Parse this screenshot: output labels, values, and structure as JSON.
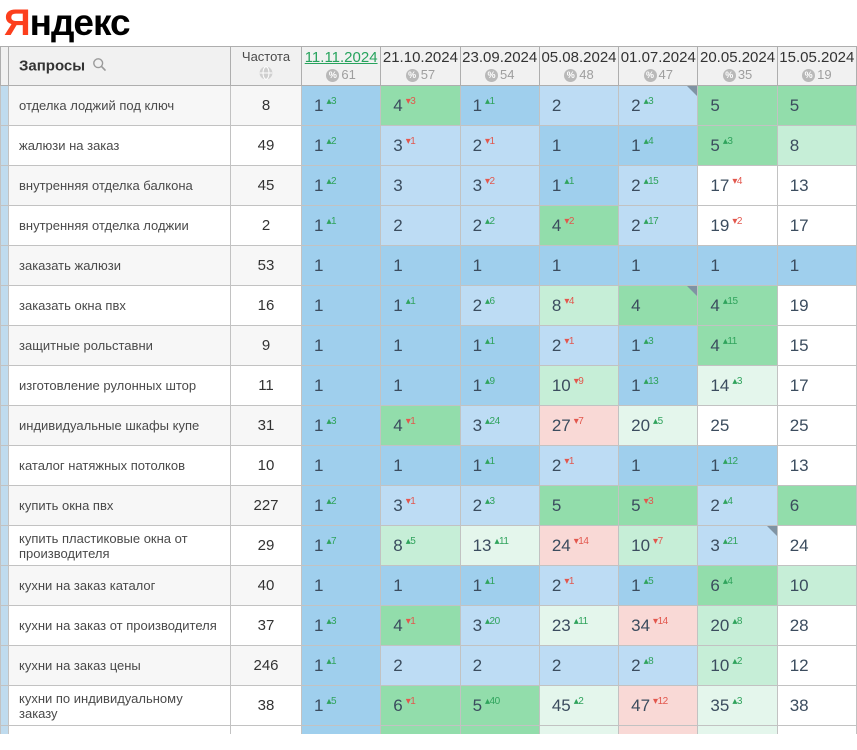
{
  "logo": {
    "brand_first": "Я",
    "brand_rest": "ндекс"
  },
  "colors": {
    "pos1_blue": "#9fcfed",
    "pos23_blue": "#bddcf4",
    "green": "#92ddab",
    "light_green": "#c6eed7",
    "pale_green": "#e4f6ec",
    "pink": "#f9d9d6",
    "white": "#ffffff",
    "delta_up_green": "#2fa35c",
    "delta_down_red": "#e2574d",
    "active_date_green": "#27a35d",
    "logo_red": "#fc3f1d"
  },
  "header": {
    "queries_label": "Запросы",
    "frequency_label": "Частота",
    "dates": [
      {
        "label": "11.11.2024",
        "percent": "61",
        "active": true
      },
      {
        "label": "21.10.2024",
        "percent": "57",
        "active": false
      },
      {
        "label": "23.09.2024",
        "percent": "54",
        "active": false
      },
      {
        "label": "05.08.2024",
        "percent": "48",
        "active": false
      },
      {
        "label": "01.07.2024",
        "percent": "47",
        "active": false
      },
      {
        "label": "20.05.2024",
        "percent": "35",
        "active": false
      },
      {
        "label": "15.05.2024",
        "percent": "19",
        "active": false
      }
    ]
  },
  "rows": [
    {
      "query": "отделка лоджий под ключ",
      "frequency": "8",
      "cells": [
        {
          "pos": "1",
          "delta": "3",
          "dir": "up",
          "bg": "pos1_blue"
        },
        {
          "pos": "4",
          "delta": "3",
          "dir": "dn",
          "bg": "green"
        },
        {
          "pos": "1",
          "delta": "1",
          "dir": "up",
          "bg": "pos1_blue"
        },
        {
          "pos": "2",
          "delta": "",
          "dir": "",
          "bg": "pos23_blue"
        },
        {
          "pos": "2",
          "delta": "3",
          "dir": "up",
          "bg": "pos23_blue",
          "marker": true
        },
        {
          "pos": "5",
          "delta": "",
          "dir": "",
          "bg": "green"
        },
        {
          "pos": "5",
          "delta": "",
          "dir": "",
          "bg": "green"
        }
      ]
    },
    {
      "query": "жалюзи на заказ",
      "frequency": "49",
      "cells": [
        {
          "pos": "1",
          "delta": "2",
          "dir": "up",
          "bg": "pos1_blue"
        },
        {
          "pos": "3",
          "delta": "1",
          "dir": "dn",
          "bg": "pos23_blue"
        },
        {
          "pos": "2",
          "delta": "1",
          "dir": "dn",
          "bg": "pos23_blue"
        },
        {
          "pos": "1",
          "delta": "",
          "dir": "",
          "bg": "pos1_blue"
        },
        {
          "pos": "1",
          "delta": "4",
          "dir": "up",
          "bg": "pos1_blue"
        },
        {
          "pos": "5",
          "delta": "3",
          "dir": "up",
          "bg": "green"
        },
        {
          "pos": "8",
          "delta": "",
          "dir": "",
          "bg": "light_green"
        }
      ]
    },
    {
      "query": "внутренняя отделка балкона",
      "frequency": "45",
      "cells": [
        {
          "pos": "1",
          "delta": "2",
          "dir": "up",
          "bg": "pos1_blue"
        },
        {
          "pos": "3",
          "delta": "",
          "dir": "",
          "bg": "pos23_blue"
        },
        {
          "pos": "3",
          "delta": "2",
          "dir": "dn",
          "bg": "pos23_blue"
        },
        {
          "pos": "1",
          "delta": "1",
          "dir": "up",
          "bg": "pos1_blue"
        },
        {
          "pos": "2",
          "delta": "15",
          "dir": "up",
          "bg": "pos23_blue"
        },
        {
          "pos": "17",
          "delta": "4",
          "dir": "dn",
          "bg": "white"
        },
        {
          "pos": "13",
          "delta": "",
          "dir": "",
          "bg": "white"
        }
      ]
    },
    {
      "query": "внутренняя отделка лоджии",
      "frequency": "2",
      "cells": [
        {
          "pos": "1",
          "delta": "1",
          "dir": "up",
          "bg": "pos1_blue"
        },
        {
          "pos": "2",
          "delta": "",
          "dir": "",
          "bg": "pos23_blue"
        },
        {
          "pos": "2",
          "delta": "2",
          "dir": "up",
          "bg": "pos23_blue"
        },
        {
          "pos": "4",
          "delta": "2",
          "dir": "dn",
          "bg": "green"
        },
        {
          "pos": "2",
          "delta": "17",
          "dir": "up",
          "bg": "pos23_blue"
        },
        {
          "pos": "19",
          "delta": "2",
          "dir": "dn",
          "bg": "white"
        },
        {
          "pos": "17",
          "delta": "",
          "dir": "",
          "bg": "white"
        }
      ]
    },
    {
      "query": "заказать жалюзи",
      "frequency": "53",
      "cells": [
        {
          "pos": "1",
          "delta": "",
          "dir": "",
          "bg": "pos1_blue"
        },
        {
          "pos": "1",
          "delta": "",
          "dir": "",
          "bg": "pos1_blue"
        },
        {
          "pos": "1",
          "delta": "",
          "dir": "",
          "bg": "pos1_blue"
        },
        {
          "pos": "1",
          "delta": "",
          "dir": "",
          "bg": "pos1_blue"
        },
        {
          "pos": "1",
          "delta": "",
          "dir": "",
          "bg": "pos1_blue"
        },
        {
          "pos": "1",
          "delta": "",
          "dir": "",
          "bg": "pos1_blue"
        },
        {
          "pos": "1",
          "delta": "",
          "dir": "",
          "bg": "pos1_blue"
        }
      ]
    },
    {
      "query": "заказать окна пвх",
      "frequency": "16",
      "cells": [
        {
          "pos": "1",
          "delta": "",
          "dir": "",
          "bg": "pos1_blue"
        },
        {
          "pos": "1",
          "delta": "1",
          "dir": "up",
          "bg": "pos1_blue"
        },
        {
          "pos": "2",
          "delta": "6",
          "dir": "up",
          "bg": "pos23_blue"
        },
        {
          "pos": "8",
          "delta": "4",
          "dir": "dn",
          "bg": "light_green"
        },
        {
          "pos": "4",
          "delta": "",
          "dir": "",
          "bg": "green",
          "marker": true
        },
        {
          "pos": "4",
          "delta": "15",
          "dir": "up",
          "bg": "green"
        },
        {
          "pos": "19",
          "delta": "",
          "dir": "",
          "bg": "white"
        }
      ]
    },
    {
      "query": "защитные рольставни",
      "frequency": "9",
      "cells": [
        {
          "pos": "1",
          "delta": "",
          "dir": "",
          "bg": "pos1_blue"
        },
        {
          "pos": "1",
          "delta": "",
          "dir": "",
          "bg": "pos1_blue"
        },
        {
          "pos": "1",
          "delta": "1",
          "dir": "up",
          "bg": "pos1_blue"
        },
        {
          "pos": "2",
          "delta": "1",
          "dir": "dn",
          "bg": "pos23_blue"
        },
        {
          "pos": "1",
          "delta": "3",
          "dir": "up",
          "bg": "pos1_blue"
        },
        {
          "pos": "4",
          "delta": "11",
          "dir": "up",
          "bg": "green"
        },
        {
          "pos": "15",
          "delta": "",
          "dir": "",
          "bg": "white"
        }
      ]
    },
    {
      "query": "изготовление рулонных штор",
      "frequency": "11",
      "cells": [
        {
          "pos": "1",
          "delta": "",
          "dir": "",
          "bg": "pos1_blue"
        },
        {
          "pos": "1",
          "delta": "",
          "dir": "",
          "bg": "pos1_blue"
        },
        {
          "pos": "1",
          "delta": "9",
          "dir": "up",
          "bg": "pos1_blue"
        },
        {
          "pos": "10",
          "delta": "9",
          "dir": "dn",
          "bg": "light_green"
        },
        {
          "pos": "1",
          "delta": "13",
          "dir": "up",
          "bg": "pos1_blue"
        },
        {
          "pos": "14",
          "delta": "3",
          "dir": "up",
          "bg": "pale_green"
        },
        {
          "pos": "17",
          "delta": "",
          "dir": "",
          "bg": "white"
        }
      ]
    },
    {
      "query": "индивидуальные шкафы купе",
      "frequency": "31",
      "cells": [
        {
          "pos": "1",
          "delta": "3",
          "dir": "up",
          "bg": "pos1_blue"
        },
        {
          "pos": "4",
          "delta": "1",
          "dir": "dn",
          "bg": "green"
        },
        {
          "pos": "3",
          "delta": "24",
          "dir": "up",
          "bg": "pos23_blue"
        },
        {
          "pos": "27",
          "delta": "7",
          "dir": "dn",
          "bg": "pink"
        },
        {
          "pos": "20",
          "delta": "5",
          "dir": "up",
          "bg": "pale_green"
        },
        {
          "pos": "25",
          "delta": "",
          "dir": "",
          "bg": "white"
        },
        {
          "pos": "25",
          "delta": "",
          "dir": "",
          "bg": "white"
        }
      ]
    },
    {
      "query": "каталог натяжных потолков",
      "frequency": "10",
      "cells": [
        {
          "pos": "1",
          "delta": "",
          "dir": "",
          "bg": "pos1_blue"
        },
        {
          "pos": "1",
          "delta": "",
          "dir": "",
          "bg": "pos1_blue"
        },
        {
          "pos": "1",
          "delta": "1",
          "dir": "up",
          "bg": "pos1_blue"
        },
        {
          "pos": "2",
          "delta": "1",
          "dir": "dn",
          "bg": "pos23_blue"
        },
        {
          "pos": "1",
          "delta": "",
          "dir": "",
          "bg": "pos1_blue"
        },
        {
          "pos": "1",
          "delta": "12",
          "dir": "up",
          "bg": "pos1_blue"
        },
        {
          "pos": "13",
          "delta": "",
          "dir": "",
          "bg": "white"
        }
      ]
    },
    {
      "query": "купить окна пвх",
      "frequency": "227",
      "cells": [
        {
          "pos": "1",
          "delta": "2",
          "dir": "up",
          "bg": "pos1_blue"
        },
        {
          "pos": "3",
          "delta": "1",
          "dir": "dn",
          "bg": "pos23_blue"
        },
        {
          "pos": "2",
          "delta": "3",
          "dir": "up",
          "bg": "pos23_blue"
        },
        {
          "pos": "5",
          "delta": "",
          "dir": "",
          "bg": "green"
        },
        {
          "pos": "5",
          "delta": "3",
          "dir": "dn",
          "bg": "green"
        },
        {
          "pos": "2",
          "delta": "4",
          "dir": "up",
          "bg": "pos23_blue"
        },
        {
          "pos": "6",
          "delta": "",
          "dir": "",
          "bg": "green"
        }
      ]
    },
    {
      "query": "купить пластиковые окна от производителя",
      "frequency": "29",
      "cells": [
        {
          "pos": "1",
          "delta": "7",
          "dir": "up",
          "bg": "pos1_blue"
        },
        {
          "pos": "8",
          "delta": "5",
          "dir": "up",
          "bg": "light_green"
        },
        {
          "pos": "13",
          "delta": "11",
          "dir": "up",
          "bg": "pale_green"
        },
        {
          "pos": "24",
          "delta": "14",
          "dir": "dn",
          "bg": "pink"
        },
        {
          "pos": "10",
          "delta": "7",
          "dir": "dn",
          "bg": "light_green"
        },
        {
          "pos": "3",
          "delta": "21",
          "dir": "up",
          "bg": "pos23_blue",
          "marker": true
        },
        {
          "pos": "24",
          "delta": "",
          "dir": "",
          "bg": "white"
        }
      ]
    },
    {
      "query": "кухни на заказ каталог",
      "frequency": "40",
      "cells": [
        {
          "pos": "1",
          "delta": "",
          "dir": "",
          "bg": "pos1_blue"
        },
        {
          "pos": "1",
          "delta": "",
          "dir": "",
          "bg": "pos1_blue"
        },
        {
          "pos": "1",
          "delta": "1",
          "dir": "up",
          "bg": "pos1_blue"
        },
        {
          "pos": "2",
          "delta": "1",
          "dir": "dn",
          "bg": "pos23_blue"
        },
        {
          "pos": "1",
          "delta": "5",
          "dir": "up",
          "bg": "pos1_blue"
        },
        {
          "pos": "6",
          "delta": "4",
          "dir": "up",
          "bg": "green"
        },
        {
          "pos": "10",
          "delta": "",
          "dir": "",
          "bg": "light_green"
        }
      ]
    },
    {
      "query": "кухни на заказ от производителя",
      "frequency": "37",
      "cells": [
        {
          "pos": "1",
          "delta": "3",
          "dir": "up",
          "bg": "pos1_blue"
        },
        {
          "pos": "4",
          "delta": "1",
          "dir": "dn",
          "bg": "green"
        },
        {
          "pos": "3",
          "delta": "20",
          "dir": "up",
          "bg": "pos23_blue"
        },
        {
          "pos": "23",
          "delta": "11",
          "dir": "up",
          "bg": "pale_green"
        },
        {
          "pos": "34",
          "delta": "14",
          "dir": "dn",
          "bg": "pink"
        },
        {
          "pos": "20",
          "delta": "8",
          "dir": "up",
          "bg": "light_green"
        },
        {
          "pos": "28",
          "delta": "",
          "dir": "",
          "bg": "white"
        }
      ]
    },
    {
      "query": "кухни на заказ цены",
      "frequency": "246",
      "cells": [
        {
          "pos": "1",
          "delta": "1",
          "dir": "up",
          "bg": "pos1_blue"
        },
        {
          "pos": "2",
          "delta": "",
          "dir": "",
          "bg": "pos23_blue"
        },
        {
          "pos": "2",
          "delta": "",
          "dir": "",
          "bg": "pos23_blue"
        },
        {
          "pos": "2",
          "delta": "",
          "dir": "",
          "bg": "pos23_blue"
        },
        {
          "pos": "2",
          "delta": "8",
          "dir": "up",
          "bg": "pos23_blue"
        },
        {
          "pos": "10",
          "delta": "2",
          "dir": "up",
          "bg": "light_green"
        },
        {
          "pos": "12",
          "delta": "",
          "dir": "",
          "bg": "white"
        }
      ]
    },
    {
      "query": "кухни по индивидуальному заказу",
      "frequency": "38",
      "cells": [
        {
          "pos": "1",
          "delta": "5",
          "dir": "up",
          "bg": "pos1_blue"
        },
        {
          "pos": "6",
          "delta": "1",
          "dir": "dn",
          "bg": "green"
        },
        {
          "pos": "5",
          "delta": "40",
          "dir": "up",
          "bg": "green"
        },
        {
          "pos": "45",
          "delta": "2",
          "dir": "up",
          "bg": "pale_green"
        },
        {
          "pos": "47",
          "delta": "12",
          "dir": "dn",
          "bg": "pink"
        },
        {
          "pos": "35",
          "delta": "3",
          "dir": "up",
          "bg": "pale_green"
        },
        {
          "pos": "38",
          "delta": "",
          "dir": "",
          "bg": "white"
        }
      ]
    }
  ],
  "partial_row": {
    "bgs": [
      "pos1_blue",
      "green",
      "green",
      "pale_green",
      "pink",
      "pale_green",
      "white"
    ]
  }
}
